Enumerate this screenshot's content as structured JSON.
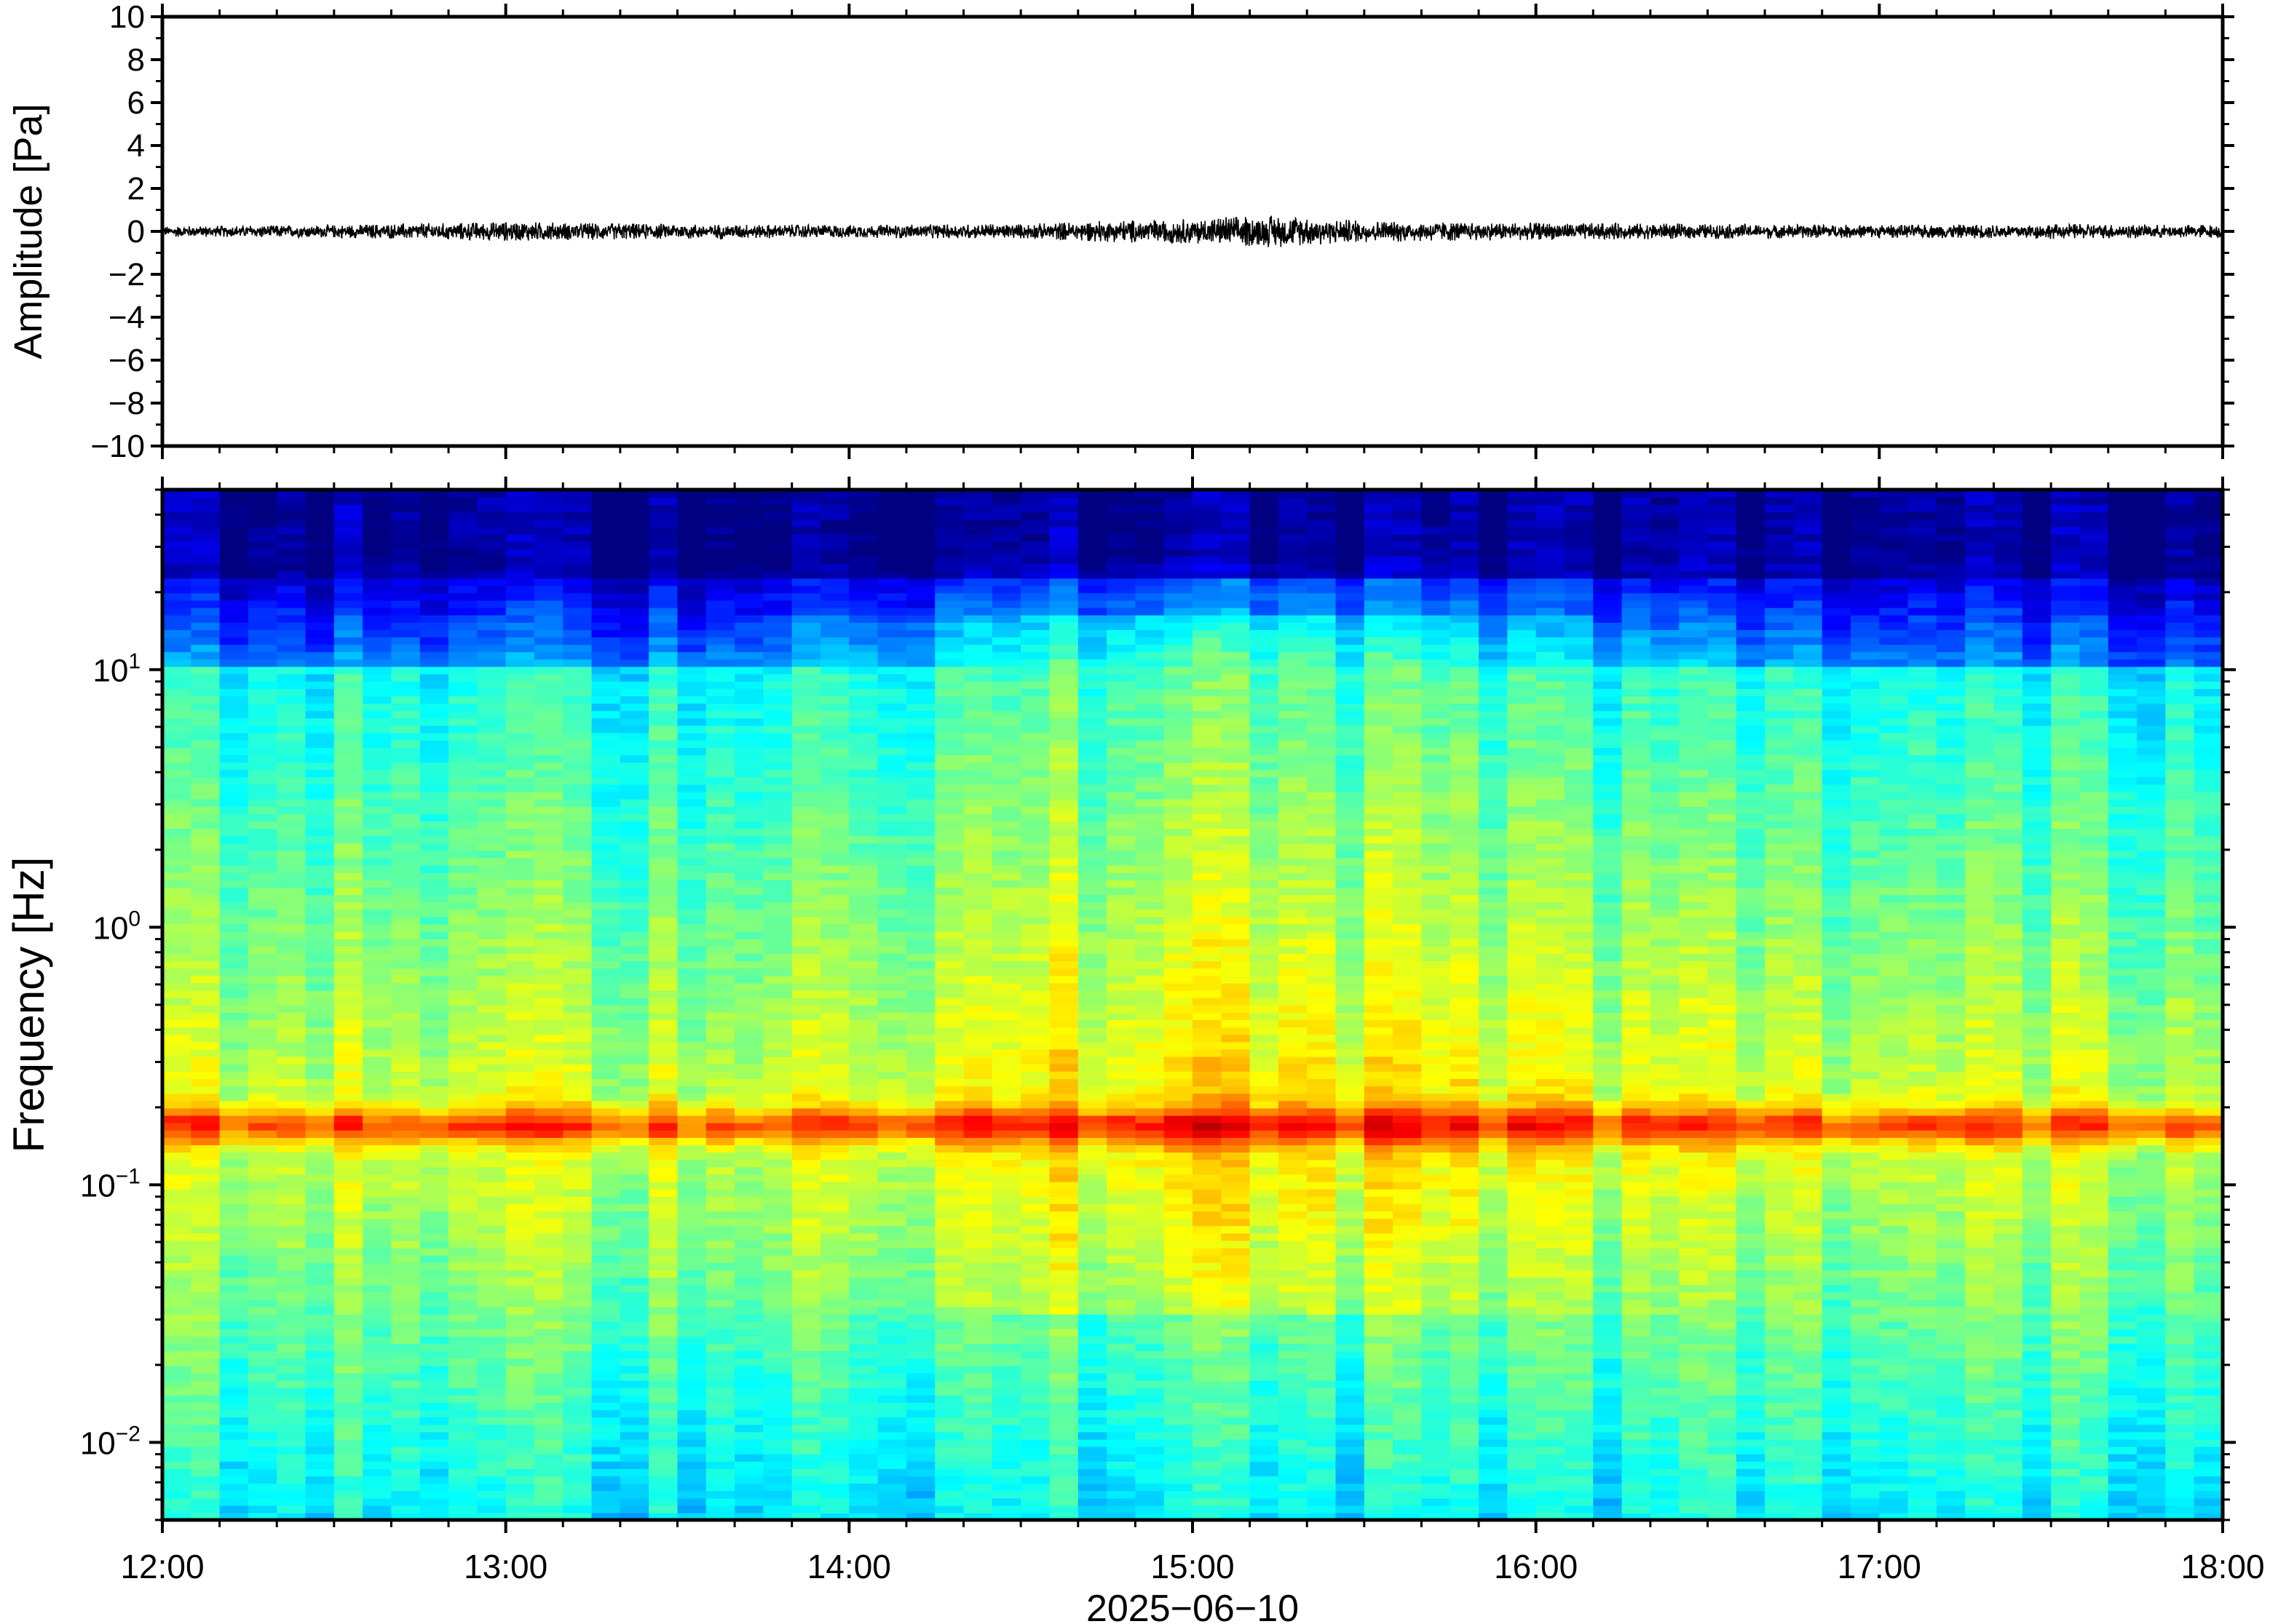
{
  "chart_data": [
    {
      "type": "line",
      "panel": "waveform",
      "ylabel": "Amplitude [Pa]",
      "ylim": [
        -10,
        10
      ],
      "yticks": [
        10,
        8,
        6,
        4,
        2,
        0,
        -2,
        -4,
        -6,
        -8,
        -10
      ],
      "ytick_labels": [
        "10",
        "8",
        "6",
        "4",
        "2",
        "0",
        "−2",
        "−4",
        "−6",
        "−8",
        "−10"
      ],
      "xlim": [
        "12:00",
        "18:00"
      ],
      "series": [
        {
          "color": "#000000",
          "x_hours": [
            12.0,
            12.5,
            13.0,
            13.5,
            14.0,
            14.5,
            14.75,
            15.0,
            15.1,
            15.25,
            15.5,
            16.0,
            16.5,
            17.0,
            17.5,
            18.0
          ],
          "envelope": [
            0.25,
            0.3,
            0.45,
            0.35,
            0.3,
            0.35,
            0.5,
            0.6,
            0.7,
            0.75,
            0.5,
            0.4,
            0.35,
            0.3,
            0.35,
            0.3
          ]
        }
      ],
      "grid": false
    },
    {
      "type": "heatmap",
      "panel": "spectrogram",
      "ylabel": "Frequency [Hz]",
      "yscale": "log",
      "ylim": [
        0.005,
        50
      ],
      "ytick_labels": [
        {
          "base": "10",
          "exp": "1",
          "value": 10
        },
        {
          "base": "10",
          "exp": "0",
          "value": 1
        },
        {
          "base": "10",
          "exp": "−1",
          "value": 0.1
        },
        {
          "base": "10",
          "exp": "−2",
          "value": 0.01
        }
      ],
      "xlim": [
        "12:00",
        "18:00"
      ],
      "x_ticks": [
        "12:00",
        "13:00",
        "14:00",
        "15:00",
        "16:00",
        "17:00",
        "18:00"
      ],
      "xlabel": "2025−06−10",
      "colormap": "jet",
      "dominant_band_hz": 0.17,
      "grid": false
    }
  ]
}
